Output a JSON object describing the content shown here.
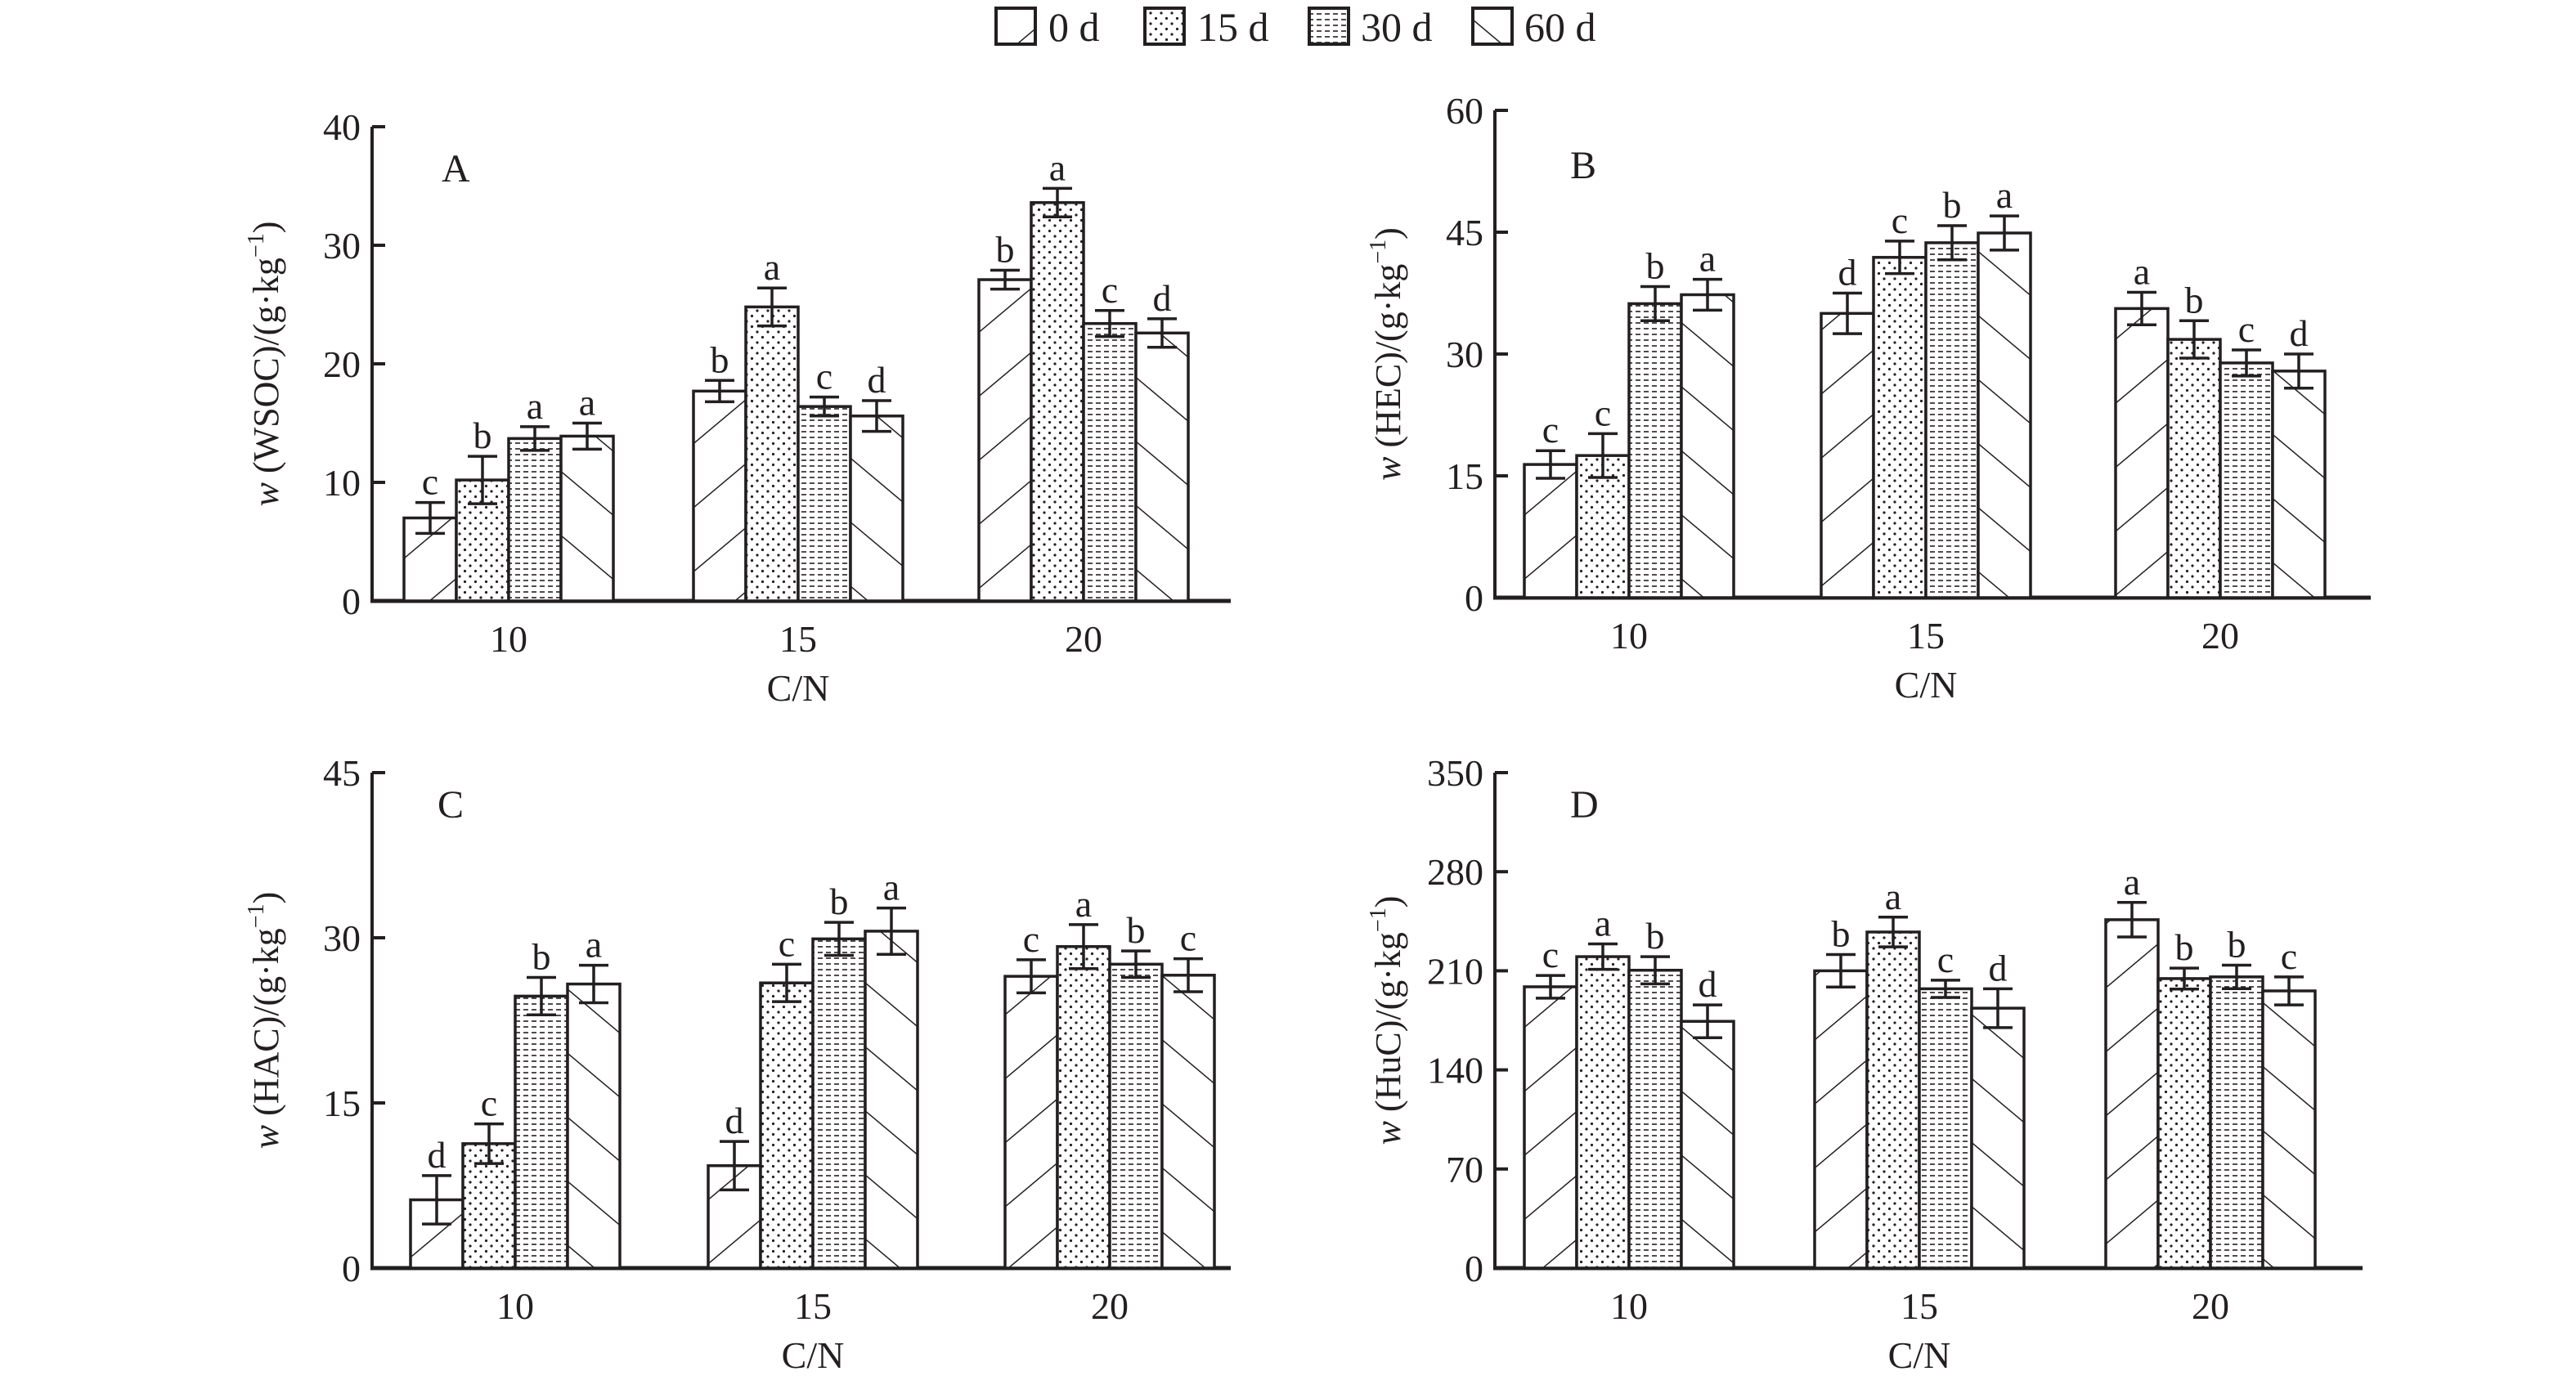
{
  "legend": {
    "items": [
      {
        "label": "0 d",
        "pattern": "hatch-forward"
      },
      {
        "label": "15 d",
        "pattern": "dots"
      },
      {
        "label": "30 d",
        "pattern": "dashes"
      },
      {
        "label": "60 d",
        "pattern": "hatch-back"
      }
    ]
  },
  "colors": {
    "ink": "#231f20",
    "background": "#ffffff"
  },
  "chart_data": [
    {
      "type": "bar",
      "panel": "A",
      "ylabel_italic": "w",
      "ylabel_rest": " (WSOC)/(g·kg",
      "ylabel_sup": "−1",
      "ylabel_close": ")",
      "xlabel": "C/N",
      "categories": [
        "10",
        "15",
        "20"
      ],
      "ylim": [
        0,
        40
      ],
      "yticks": [
        "0",
        "10",
        "20",
        "30",
        "40"
      ],
      "series": [
        {
          "name": "0 d",
          "values": [
            7.0,
            17.7,
            27.1
          ],
          "errors": [
            1.3,
            0.9,
            0.8
          ],
          "letters": [
            "c",
            "b",
            "b"
          ]
        },
        {
          "name": "15 d",
          "values": [
            10.2,
            24.8,
            33.6
          ],
          "errors": [
            2.0,
            1.6,
            1.2
          ],
          "letters": [
            "b",
            "a",
            "a"
          ]
        },
        {
          "name": "30 d",
          "values": [
            13.7,
            16.4,
            23.4
          ],
          "errors": [
            1.0,
            0.8,
            1.1
          ],
          "letters": [
            "a",
            "c",
            "c"
          ]
        },
        {
          "name": "60 d",
          "values": [
            13.9,
            15.6,
            22.6
          ],
          "errors": [
            1.1,
            1.3,
            1.2
          ],
          "letters": [
            "a",
            "d",
            "d"
          ]
        }
      ]
    },
    {
      "type": "bar",
      "panel": "B",
      "ylabel_italic": "w",
      "ylabel_rest": " (HEC)/(g·kg",
      "ylabel_sup": "−1",
      "ylabel_close": ")",
      "xlabel": "C/N",
      "categories": [
        "10",
        "15",
        "20"
      ],
      "ylim": [
        0,
        60
      ],
      "yticks": [
        "0",
        "15",
        "30",
        "45",
        "60"
      ],
      "series": [
        {
          "name": "0 d",
          "values": [
            16.4,
            35.0,
            35.6
          ],
          "errors": [
            1.7,
            2.5,
            2.0
          ],
          "letters": [
            "c",
            "d",
            "a"
          ]
        },
        {
          "name": "15 d",
          "values": [
            17.5,
            41.9,
            31.8
          ],
          "errors": [
            2.7,
            2.0,
            2.3
          ],
          "letters": [
            "c",
            "c",
            "b"
          ]
        },
        {
          "name": "30 d",
          "values": [
            36.2,
            43.7,
            28.9
          ],
          "errors": [
            2.1,
            2.1,
            1.6
          ],
          "letters": [
            "b",
            "b",
            "c"
          ]
        },
        {
          "name": "60 d",
          "values": [
            37.3,
            44.9,
            27.9
          ],
          "errors": [
            1.9,
            2.1,
            2.1
          ],
          "letters": [
            "a",
            "a",
            "d"
          ]
        }
      ]
    },
    {
      "type": "bar",
      "panel": "C",
      "ylabel_italic": "w",
      "ylabel_rest": " (HAC)/(g·kg",
      "ylabel_sup": "−1",
      "ylabel_close": ")",
      "xlabel": "C/N",
      "categories": [
        "10",
        "15",
        "20"
      ],
      "ylim": [
        0,
        45
      ],
      "yticks": [
        "0",
        "15",
        "30",
        "45"
      ],
      "series": [
        {
          "name": "0 d",
          "values": [
            6.2,
            9.3,
            26.5
          ],
          "errors": [
            2.2,
            2.2,
            1.5
          ],
          "letters": [
            "d",
            "d",
            "c"
          ]
        },
        {
          "name": "15 d",
          "values": [
            11.3,
            25.9,
            29.2
          ],
          "errors": [
            1.8,
            1.7,
            2.0
          ],
          "letters": [
            "c",
            "c",
            "a"
          ]
        },
        {
          "name": "30 d",
          "values": [
            24.7,
            29.9,
            27.6
          ],
          "errors": [
            1.7,
            1.5,
            1.2
          ],
          "letters": [
            "b",
            "b",
            "b"
          ]
        },
        {
          "name": "60 d",
          "values": [
            25.8,
            30.6,
            26.6
          ],
          "errors": [
            1.7,
            2.1,
            1.5
          ],
          "letters": [
            "a",
            "a",
            "c"
          ]
        }
      ]
    },
    {
      "type": "bar",
      "panel": "D",
      "ylabel_italic": "w",
      "ylabel_rest": " (HuC)/(g·kg",
      "ylabel_sup": "−1",
      "ylabel_close": ")",
      "xlabel": "C/N",
      "categories": [
        "10",
        "15",
        "20"
      ],
      "ylim": [
        0,
        350
      ],
      "yticks": [
        "0",
        "70",
        "140",
        "210",
        "280",
        "350"
      ],
      "series": [
        {
          "name": "0 d",
          "values": [
            198.7,
            210.0,
            246.1
          ],
          "errors": [
            8.0,
            11.5,
            12.2
          ],
          "letters": [
            "c",
            "b",
            "a"
          ]
        },
        {
          "name": "15 d",
          "values": [
            220.0,
            237.4,
            204.5
          ],
          "errors": [
            9.0,
            10.5,
            7.4
          ],
          "letters": [
            "a",
            "a",
            "b"
          ]
        },
        {
          "name": "30 d",
          "values": [
            210.4,
            197.3,
            205.7
          ],
          "errors": [
            9.6,
            6.1,
            8.3
          ],
          "letters": [
            "b",
            "c",
            "b"
          ]
        },
        {
          "name": "60 d",
          "values": [
            174.3,
            183.6,
            195.8
          ],
          "errors": [
            11.6,
            13.7,
            9.9
          ],
          "letters": [
            "d",
            "d",
            "c"
          ]
        }
      ]
    }
  ]
}
